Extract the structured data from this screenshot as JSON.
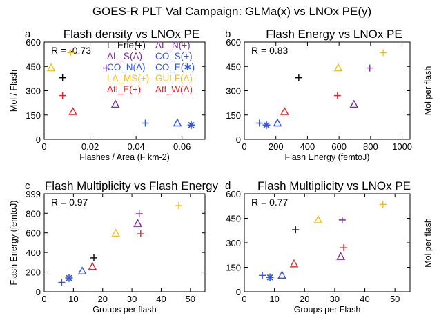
{
  "suptitle": "GOES-R PLT Val Campaign: GLMa(x) vs LNOx PE(y)",
  "colors": {
    "L_Erie": "#000000",
    "AL_N": "#7b2b9a",
    "AL_S": "#7b2b9a",
    "CO_S": "#3355dd",
    "CO_N": "#3355dd",
    "CO_E": "#3355dd",
    "LA_MS": "#f0c020",
    "GULF": "#f0c020",
    "Atl_E": "#e0242a",
    "Atl_W": "#e0242a"
  },
  "legend": [
    {
      "key": "L_Erie",
      "text": "L_Erie(+)",
      "symbol": "plus"
    },
    {
      "key": "AL_N",
      "text": "AL_N(+)",
      "symbol": "plus"
    },
    {
      "key": "AL_S",
      "text": "AL_S(Δ)",
      "symbol": "triangle"
    },
    {
      "key": "CO_S",
      "text": "CO_S(+)",
      "symbol": "plus"
    },
    {
      "key": "CO_N",
      "text": "CO_N(Δ)",
      "symbol": "triangle"
    },
    {
      "key": "CO_E",
      "text": "CO_E(✱)",
      "symbol": "star"
    },
    {
      "key": "LA_MS",
      "text": "LA_MS(+)",
      "symbol": "plus"
    },
    {
      "key": "GULF",
      "text": "GULF(Δ)",
      "symbol": "triangle"
    },
    {
      "key": "Atl_E",
      "text": "Atl_E(+)",
      "symbol": "plus"
    },
    {
      "key": "Atl_W",
      "text": "Atl_W(Δ)",
      "symbol": "triangle"
    }
  ],
  "chart_data": [
    {
      "type": "scatter",
      "panel": "a",
      "title": "Flash density vs LNOx PE",
      "xlabel": "Flashes / Area (F km-2)",
      "ylabel": "Mol / Flash",
      "ylabel_side": "left",
      "annotation": "R = -0.73",
      "xlim": [
        0,
        0.07
      ],
      "ylim": [
        0,
        600
      ],
      "xticks": [
        0,
        0.02,
        0.04,
        0.06
      ],
      "xtick_labels": [
        "0",
        "0.02",
        "0.04",
        "0.06"
      ],
      "yticks": [
        0,
        150,
        300,
        450,
        600
      ],
      "ytick_labels": [
        "0",
        "150",
        "300",
        "450",
        "600"
      ],
      "points": [
        {
          "key": "L_Erie",
          "x": 0.008,
          "y": 380
        },
        {
          "key": "AL_N",
          "x": 0.027,
          "y": 440
        },
        {
          "key": "AL_S",
          "x": 0.031,
          "y": 215
        },
        {
          "key": "CO_S",
          "x": 0.044,
          "y": 100
        },
        {
          "key": "CO_N",
          "x": 0.058,
          "y": 100
        },
        {
          "key": "CO_E",
          "x": 0.064,
          "y": 88
        },
        {
          "key": "LA_MS",
          "x": 0.0115,
          "y": 535
        },
        {
          "key": "GULF",
          "x": 0.003,
          "y": 440
        },
        {
          "key": "Atl_E",
          "x": 0.008,
          "y": 270
        },
        {
          "key": "Atl_W",
          "x": 0.0125,
          "y": 170
        }
      ]
    },
    {
      "type": "scatter",
      "panel": "b",
      "title": "Flash Energy vs LNOx PE",
      "xlabel": "Flash Energy (femtoJ)",
      "ylabel": "Mol per flash",
      "ylabel_side": "right",
      "annotation": "R =  0.83",
      "xlim": [
        0,
        1050
      ],
      "ylim": [
        0,
        600
      ],
      "xticks": [
        0,
        200,
        400,
        600,
        800,
        1000
      ],
      "xtick_labels": [
        "0",
        "200",
        "400",
        "600",
        "800",
        "1000"
      ],
      "yticks": [
        0,
        150,
        300,
        450,
        600
      ],
      "ytick_labels": [
        "0",
        "150",
        "300",
        "450",
        "600"
      ],
      "points": [
        {
          "key": "L_Erie",
          "x": 345,
          "y": 380
        },
        {
          "key": "AL_N",
          "x": 795,
          "y": 440
        },
        {
          "key": "AL_S",
          "x": 695,
          "y": 215
        },
        {
          "key": "CO_S",
          "x": 95,
          "y": 100
        },
        {
          "key": "CO_N",
          "x": 210,
          "y": 100
        },
        {
          "key": "CO_E",
          "x": 140,
          "y": 88
        },
        {
          "key": "LA_MS",
          "x": 880,
          "y": 535
        },
        {
          "key": "GULF",
          "x": 595,
          "y": 440
        },
        {
          "key": "Atl_E",
          "x": 590,
          "y": 270
        },
        {
          "key": "Atl_W",
          "x": 255,
          "y": 170
        }
      ]
    },
    {
      "type": "scatter",
      "panel": "c",
      "title": "Flash Multiplicity vs Flash Energy",
      "xlabel": "Groups per flash",
      "ylabel": "Flash Energy (femtoJ)",
      "ylabel_side": "left",
      "annotation": "R =  0.97",
      "xlim": [
        0,
        55
      ],
      "ylim": [
        0,
        999
      ],
      "xticks": [
        0,
        10,
        20,
        30,
        40,
        50
      ],
      "xtick_labels": [
        "0",
        "10",
        "20",
        "30",
        "40",
        "50"
      ],
      "yticks": [
        0,
        200,
        400,
        600,
        800,
        999
      ],
      "ytick_labels": [
        "0",
        "200",
        "400",
        "600",
        "800",
        "999"
      ],
      "points": [
        {
          "key": "L_Erie",
          "x": 17,
          "y": 345
        },
        {
          "key": "AL_N",
          "x": 32.5,
          "y": 795
        },
        {
          "key": "AL_S",
          "x": 32,
          "y": 695
        },
        {
          "key": "CO_S",
          "x": 6,
          "y": 95
        },
        {
          "key": "CO_N",
          "x": 13,
          "y": 210
        },
        {
          "key": "CO_E",
          "x": 8.5,
          "y": 140
        },
        {
          "key": "LA_MS",
          "x": 46,
          "y": 880
        },
        {
          "key": "GULF",
          "x": 24.5,
          "y": 595
        },
        {
          "key": "Atl_E",
          "x": 33,
          "y": 590
        },
        {
          "key": "Atl_W",
          "x": 16.5,
          "y": 255
        }
      ]
    },
    {
      "type": "scatter",
      "panel": "d",
      "title": "Flash Multiplicity vs LNOx PE",
      "xlabel": "Groups per Flash",
      "ylabel": "Mol per flash",
      "ylabel_side": "right",
      "annotation": "R =  0.77",
      "xlim": [
        0,
        55
      ],
      "ylim": [
        0,
        600
      ],
      "xticks": [
        0,
        10,
        20,
        30,
        40,
        50
      ],
      "xtick_labels": [
        "0",
        "10",
        "20",
        "30",
        "40",
        "50"
      ],
      "yticks": [
        0,
        150,
        300,
        450,
        600
      ],
      "ytick_labels": [
        "0",
        "150",
        "300",
        "450",
        "600"
      ],
      "points": [
        {
          "key": "L_Erie",
          "x": 17,
          "y": 380
        },
        {
          "key": "AL_N",
          "x": 32.5,
          "y": 440
        },
        {
          "key": "AL_S",
          "x": 32,
          "y": 215
        },
        {
          "key": "CO_S",
          "x": 6,
          "y": 100
        },
        {
          "key": "CO_N",
          "x": 12.5,
          "y": 100
        },
        {
          "key": "CO_E",
          "x": 8.5,
          "y": 88
        },
        {
          "key": "LA_MS",
          "x": 46,
          "y": 535
        },
        {
          "key": "GULF",
          "x": 24.5,
          "y": 440
        },
        {
          "key": "Atl_E",
          "x": 33,
          "y": 270
        },
        {
          "key": "Atl_W",
          "x": 16.5,
          "y": 170
        }
      ]
    }
  ]
}
